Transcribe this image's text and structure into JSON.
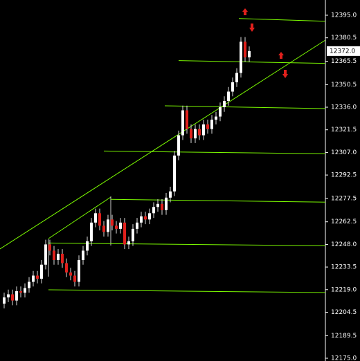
{
  "chart_data": {
    "type": "candlestick",
    "up_color": "#ffffff",
    "down_color": "#e0201c",
    "level_color": "#7cfc00",
    "ylim": [
      12175,
      12395
    ],
    "yticks": [
      {
        "value": 12395,
        "label": "12395.0"
      },
      12380.5,
      12365.5,
      12350.5,
      {
        "value": 12336,
        "label": "12336.0"
      },
      12321.5,
      {
        "value": 12307,
        "label": "12307.0"
      },
      12292.5,
      12277.5,
      12262.5,
      {
        "value": 12248,
        "label": "12248.0"
      },
      12233.5,
      {
        "value": 12219,
        "label": "12219.0"
      },
      12204.5,
      12189.5,
      {
        "value": 12175,
        "label": "12175.0"
      }
    ],
    "last_price": 12372,
    "last_price_label": "12372.0",
    "levels": [
      12392,
      12365,
      12336,
      12307,
      12276,
      12248,
      12218
    ],
    "open": [
      12210,
      12214,
      12216,
      12212,
      12218,
      12217,
      12220,
      12224,
      12228,
      12226,
      12235,
      12248,
      12244,
      12238,
      12242,
      12236,
      12230,
      12228,
      12224,
      12238,
      12244,
      12250,
      12262,
      12268,
      12260,
      12256,
      12264,
      12260,
      12258,
      12262,
      12248,
      12250,
      12258,
      12262,
      12266,
      12264,
      12268,
      12272,
      12274,
      12270,
      12278,
      12282,
      12305,
      12318,
      12334,
      12322,
      12316,
      12322,
      12318,
      12325,
      12322,
      12328,
      12330,
      12336,
      12340,
      12346,
      12352,
      12358,
      12378,
      12368
    ],
    "high": [
      12217,
      12219,
      12219,
      12221,
      12221,
      12223,
      12227,
      12231,
      12231,
      12238,
      12251,
      12251,
      12247,
      12245,
      12245,
      12239,
      12233,
      12231,
      12241,
      12247,
      12253,
      12265,
      12271,
      12271,
      12263,
      12267,
      12267,
      12263,
      12265,
      12265,
      12253,
      12261,
      12265,
      12269,
      12269,
      12271,
      12275,
      12277,
      12277,
      12281,
      12285,
      12308,
      12321,
      12337,
      12337,
      12325,
      12325,
      12325,
      12328,
      12328,
      12331,
      12333,
      12339,
      12343,
      12349,
      12355,
      12361,
      12381,
      12381,
      12375
    ],
    "low": [
      12207,
      12211,
      12209,
      12209,
      12214,
      12214,
      12217,
      12221,
      12223,
      12223,
      12232,
      12241,
      12235,
      12235,
      12233,
      12227,
      12225,
      12221,
      12221,
      12235,
      12241,
      12247,
      12259,
      12257,
      12253,
      12253,
      12257,
      12255,
      12255,
      12245,
      12245,
      12247,
      12255,
      12259,
      12261,
      12261,
      12265,
      12269,
      12267,
      12267,
      12275,
      12279,
      12302,
      12315,
      12319,
      12313,
      12313,
      12315,
      12315,
      12319,
      12319,
      12325,
      12327,
      12333,
      12337,
      12343,
      12349,
      12355,
      12365,
      12365
    ],
    "close": [
      12214,
      12216,
      12212,
      12218,
      12217,
      12220,
      12224,
      12228,
      12226,
      12235,
      12248,
      12244,
      12238,
      12242,
      12236,
      12230,
      12228,
      12224,
      12238,
      12244,
      12250,
      12262,
      12268,
      12260,
      12256,
      12264,
      12260,
      12258,
      12262,
      12248,
      12250,
      12258,
      12262,
      12266,
      12264,
      12268,
      12272,
      12274,
      12270,
      12278,
      12282,
      12305,
      12318,
      12334,
      12322,
      12316,
      12322,
      12318,
      12325,
      12322,
      12328,
      12330,
      12336,
      12340,
      12346,
      12352,
      12358,
      12378,
      12368,
      12372
    ]
  }
}
